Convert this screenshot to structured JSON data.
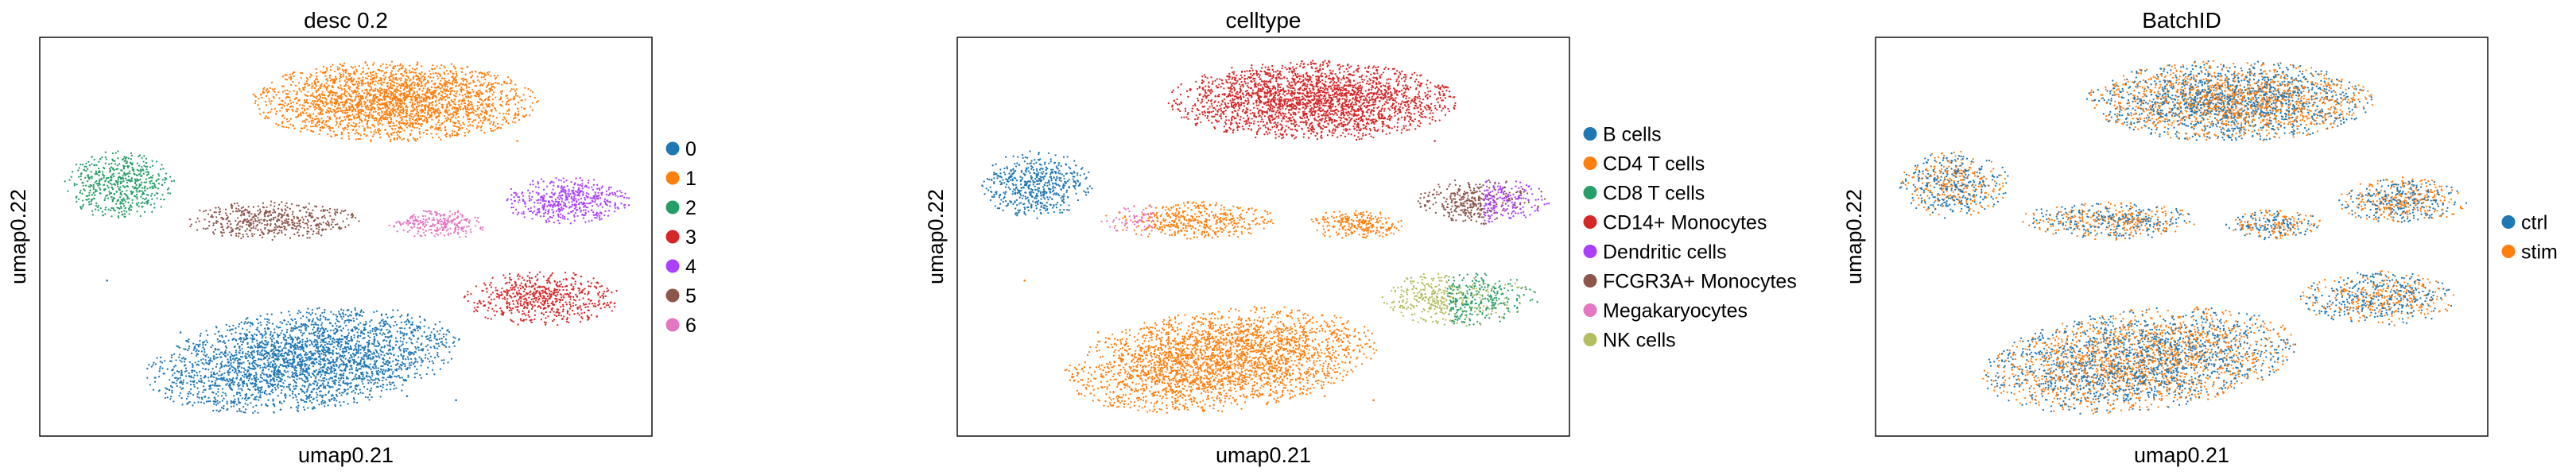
{
  "figure": {
    "panels": [
      {
        "title": "desc 0.2",
        "xlabel": "umap0.21",
        "ylabel": "umap0.22",
        "legend": [
          {
            "label": "0",
            "color": "#1f77b4"
          },
          {
            "label": "1",
            "color": "#ff7f0e"
          },
          {
            "label": "2",
            "color": "#279e68"
          },
          {
            "label": "3",
            "color": "#d62728"
          },
          {
            "label": "4",
            "color": "#aa40fc"
          },
          {
            "label": "5",
            "color": "#8c564b"
          },
          {
            "label": "6",
            "color": "#e377c2"
          }
        ]
      },
      {
        "title": "celltype",
        "xlabel": "umap0.21",
        "ylabel": "umap0.22",
        "legend": [
          {
            "label": "B cells",
            "color": "#1f77b4"
          },
          {
            "label": "CD4 T cells",
            "color": "#ff7f0e"
          },
          {
            "label": "CD8 T cells",
            "color": "#279e68"
          },
          {
            "label": "CD14+ Monocytes",
            "color": "#d62728"
          },
          {
            "label": "Dendritic cells",
            "color": "#aa40fc"
          },
          {
            "label": "FCGR3A+ Monocytes",
            "color": "#8c564b"
          },
          {
            "label": "Megakaryocytes",
            "color": "#e377c2"
          },
          {
            "label": "NK cells",
            "color": "#b5bd61"
          }
        ]
      },
      {
        "title": "BatchID",
        "xlabel": "umap0.21",
        "ylabel": "umap0.22",
        "legend": [
          {
            "label": "ctrl",
            "color": "#1f77b4"
          },
          {
            "label": "stim",
            "color": "#ff7f0e"
          }
        ]
      }
    ]
  },
  "chart_data": [
    {
      "type": "scatter",
      "title": "desc 0.2",
      "xlabel": "umap0.21",
      "ylabel": "umap0.22",
      "grid": false,
      "ticks": "none",
      "legend_position": "right",
      "series": [
        {
          "name": "0",
          "color": "#1f77b4",
          "x": [
            0.11,
            0.23,
            0.34,
            0.44,
            0.6,
            0.68
          ],
          "y": [
            0.39,
            0.26,
            0.15,
            0.1,
            0.1,
            0.09
          ]
        },
        {
          "name": "1",
          "color": "#ff7f0e",
          "x": [
            0.39,
            0.48,
            0.6,
            0.69,
            0.78
          ],
          "y": [
            0.78,
            0.89,
            0.88,
            0.84,
            0.74
          ]
        },
        {
          "name": "2",
          "color": "#279e68",
          "x": [
            0.06,
            0.13,
            0.2
          ],
          "y": [
            0.6,
            0.65,
            0.63
          ]
        },
        {
          "name": "3",
          "color": "#d62728",
          "x": [
            0.73,
            0.83,
            0.91
          ],
          "y": [
            0.37,
            0.39,
            0.3
          ]
        },
        {
          "name": "4",
          "color": "#aa40fc",
          "x": [
            0.79,
            0.86,
            0.94
          ],
          "y": [
            0.59,
            0.6,
            0.58
          ]
        },
        {
          "name": "5",
          "color": "#8c564b",
          "x": [
            0.28,
            0.37,
            0.49
          ],
          "y": [
            0.55,
            0.56,
            0.52
          ]
        },
        {
          "name": "6",
          "color": "#e377c2",
          "x": [
            0.59,
            0.64,
            0.72
          ],
          "y": [
            0.53,
            0.51,
            0.52
          ]
        }
      ]
    },
    {
      "type": "scatter",
      "title": "celltype",
      "xlabel": "umap0.21",
      "ylabel": "umap0.22",
      "grid": false,
      "ticks": "none",
      "legend_position": "right",
      "series": [
        {
          "name": "B cells",
          "color": "#1f77b4",
          "x": [
            0.06,
            0.13,
            0.2
          ],
          "y": [
            0.6,
            0.65,
            0.63
          ]
        },
        {
          "name": "CD4 T cells",
          "color": "#ff7f0e",
          "x": [
            0.11,
            0.23,
            0.34,
            0.44,
            0.6,
            0.68,
            0.37,
            0.63
          ],
          "y": [
            0.39,
            0.26,
            0.15,
            0.1,
            0.1,
            0.09,
            0.55,
            0.52
          ]
        },
        {
          "name": "CD8 T cells",
          "color": "#279e68",
          "x": [
            0.83,
            0.9
          ],
          "y": [
            0.33,
            0.32
          ]
        },
        {
          "name": "CD14+ Monocytes",
          "color": "#d62728",
          "x": [
            0.39,
            0.48,
            0.6,
            0.69,
            0.78
          ],
          "y": [
            0.78,
            0.89,
            0.88,
            0.84,
            0.74
          ]
        },
        {
          "name": "Dendritic cells",
          "color": "#aa40fc",
          "x": [
            0.87,
            0.92
          ],
          "y": [
            0.58,
            0.57
          ]
        },
        {
          "name": "FCGR3A+ Monocytes",
          "color": "#8c564b",
          "x": [
            0.79,
            0.84
          ],
          "y": [
            0.61,
            0.55
          ]
        },
        {
          "name": "Megakaryocytes",
          "color": "#e377c2",
          "x": [
            0.29,
            0.32
          ],
          "y": [
            0.55,
            0.56
          ]
        },
        {
          "name": "NK cells",
          "color": "#b5bd61",
          "x": [
            0.75,
            0.82
          ],
          "y": [
            0.37,
            0.36
          ]
        }
      ]
    },
    {
      "type": "scatter",
      "title": "BatchID",
      "xlabel": "umap0.21",
      "ylabel": "umap0.22",
      "grid": false,
      "ticks": "none",
      "legend_position": "right",
      "series": [
        {
          "name": "ctrl",
          "color": "#1f77b4",
          "x": [
            0.13,
            0.48,
            0.6,
            0.34,
            0.83
          ],
          "y": [
            0.63,
            0.89,
            0.55,
            0.15,
            0.38
          ]
        },
        {
          "name": "stim",
          "color": "#ff7f0e",
          "x": [
            0.13,
            0.6,
            0.6,
            0.34,
            0.86
          ],
          "y": [
            0.6,
            0.85,
            0.52,
            0.2,
            0.58
          ]
        }
      ]
    }
  ]
}
